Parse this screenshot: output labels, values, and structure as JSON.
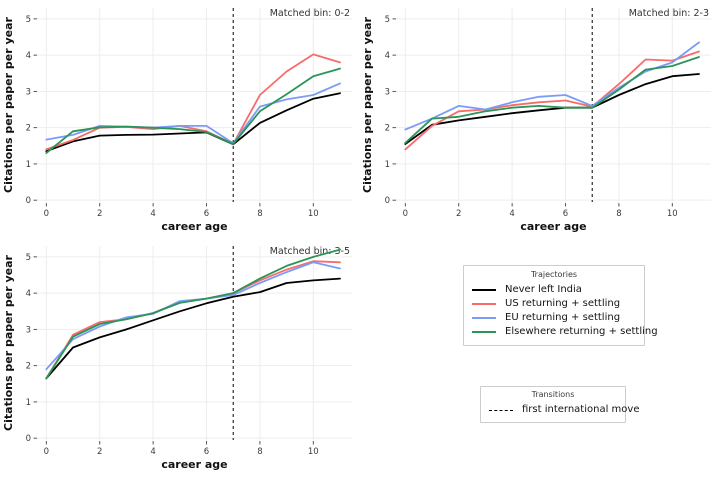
{
  "figure": {
    "background": "#ffffff",
    "grid_color": "#ededed",
    "tick_color": "#444444",
    "tick_label_color": "#3b3b3b",
    "title_color": "#333333",
    "axis_label_color": "#111111"
  },
  "chart_data": [
    {
      "type": "line",
      "title": "Matched bin: 0-2",
      "xlabel": "career age",
      "ylabel": "Citations per paper per year",
      "x": [
        0,
        1,
        2,
        3,
        4,
        5,
        6,
        7,
        8,
        9,
        10,
        11
      ],
      "xticks": [
        0,
        2,
        4,
        6,
        8,
        10
      ],
      "yticks": [
        0,
        1,
        2,
        3,
        4,
        5
      ],
      "xlim": [
        -0.35,
        11.45
      ],
      "ylim": [
        -0.05,
        5.3
      ],
      "grid": true,
      "vline_x": 7,
      "series": [
        {
          "name": "Never left India",
          "color": "#000000",
          "values": [
            1.35,
            1.62,
            1.78,
            1.8,
            1.81,
            1.84,
            1.87,
            1.54,
            2.13,
            2.48,
            2.8,
            2.95
          ]
        },
        {
          "name": "US returning + settling",
          "color": "#F86B6B",
          "values": [
            1.4,
            1.66,
            2.0,
            2.02,
            1.96,
            2.05,
            1.9,
            1.55,
            2.9,
            3.55,
            4.02,
            3.8
          ]
        },
        {
          "name": "EU returning + settling",
          "color": "#7B9CF6",
          "values": [
            1.67,
            1.8,
            2.05,
            2.03,
            2.0,
            2.05,
            2.05,
            1.57,
            2.58,
            2.78,
            2.9,
            3.22
          ]
        },
        {
          "name": "Elsewhere returning + settling",
          "color": "#2B9457",
          "values": [
            1.3,
            1.9,
            2.01,
            2.03,
            2.0,
            1.96,
            1.88,
            1.55,
            2.45,
            2.92,
            3.42,
            3.63
          ]
        }
      ]
    },
    {
      "type": "line",
      "title": "Matched bin: 2-3",
      "xlabel": "career age",
      "ylabel": "Citations per paper per year",
      "x": [
        0,
        1,
        2,
        3,
        4,
        5,
        6,
        7,
        8,
        9,
        10,
        11
      ],
      "xticks": [
        0,
        2,
        4,
        6,
        8,
        10
      ],
      "yticks": [
        0,
        1,
        2,
        3,
        4,
        5
      ],
      "xlim": [
        -0.35,
        11.45
      ],
      "ylim": [
        -0.05,
        5.3
      ],
      "grid": true,
      "vline_x": 7,
      "series": [
        {
          "name": "Never left India",
          "color": "#000000",
          "values": [
            1.55,
            2.08,
            2.2,
            2.3,
            2.4,
            2.48,
            2.55,
            2.55,
            2.9,
            3.2,
            3.42,
            3.48
          ]
        },
        {
          "name": "US returning + settling",
          "color": "#F86B6B",
          "values": [
            1.4,
            2.05,
            2.45,
            2.5,
            2.62,
            2.7,
            2.75,
            2.58,
            3.2,
            3.88,
            3.85,
            4.1
          ]
        },
        {
          "name": "EU returning + settling",
          "color": "#7B9CF6",
          "values": [
            1.95,
            2.25,
            2.6,
            2.5,
            2.7,
            2.85,
            2.9,
            2.6,
            3.1,
            3.55,
            3.8,
            4.35
          ]
        },
        {
          "name": "Elsewhere returning + settling",
          "color": "#2B9457",
          "values": [
            1.58,
            2.25,
            2.3,
            2.45,
            2.55,
            2.6,
            2.55,
            2.55,
            3.05,
            3.6,
            3.7,
            3.95
          ]
        }
      ]
    },
    {
      "type": "line",
      "title": "Matched bin: 3-5",
      "xlabel": "career age",
      "ylabel": "Citations per paper per year",
      "x": [
        0,
        1,
        2,
        3,
        4,
        5,
        6,
        7,
        8,
        9,
        10,
        11
      ],
      "xticks": [
        0,
        2,
        4,
        6,
        8,
        10
      ],
      "yticks": [
        0,
        1,
        2,
        3,
        4,
        5
      ],
      "xlim": [
        -0.35,
        11.45
      ],
      "ylim": [
        -0.05,
        5.3
      ],
      "grid": true,
      "vline_x": 7,
      "series": [
        {
          "name": "Never left India",
          "color": "#000000",
          "values": [
            1.65,
            2.5,
            2.78,
            3.0,
            3.25,
            3.5,
            3.72,
            3.9,
            4.03,
            4.28,
            4.35,
            4.4
          ]
        },
        {
          "name": "US returning + settling",
          "color": "#F86B6B",
          "values": [
            1.65,
            2.85,
            3.2,
            3.28,
            3.45,
            3.75,
            3.85,
            4.0,
            4.35,
            4.65,
            4.88,
            4.85
          ]
        },
        {
          "name": "EU returning + settling",
          "color": "#7B9CF6",
          "values": [
            1.9,
            2.73,
            3.08,
            3.33,
            3.43,
            3.78,
            3.85,
            3.95,
            4.28,
            4.58,
            4.85,
            4.68
          ]
        },
        {
          "name": "Elsewhere returning + settling",
          "color": "#2B9457",
          "values": [
            1.65,
            2.8,
            3.15,
            3.28,
            3.45,
            3.73,
            3.85,
            4.0,
            4.4,
            4.75,
            5.0,
            5.2
          ]
        }
      ]
    }
  ],
  "legend": {
    "trajectories": {
      "title": "Trajectories",
      "items": [
        {
          "label": "Never left India",
          "color": "#000000"
        },
        {
          "label": "US returning + settling",
          "color": "#F86B6B"
        },
        {
          "label": "EU returning + settling",
          "color": "#7B9CF6"
        },
        {
          "label": "Elsewhere returning + settling",
          "color": "#2B9457"
        }
      ]
    },
    "transitions": {
      "title": "Transitions",
      "items": [
        {
          "label": "first international move",
          "color": "#000000",
          "style": "dashed"
        }
      ]
    }
  }
}
